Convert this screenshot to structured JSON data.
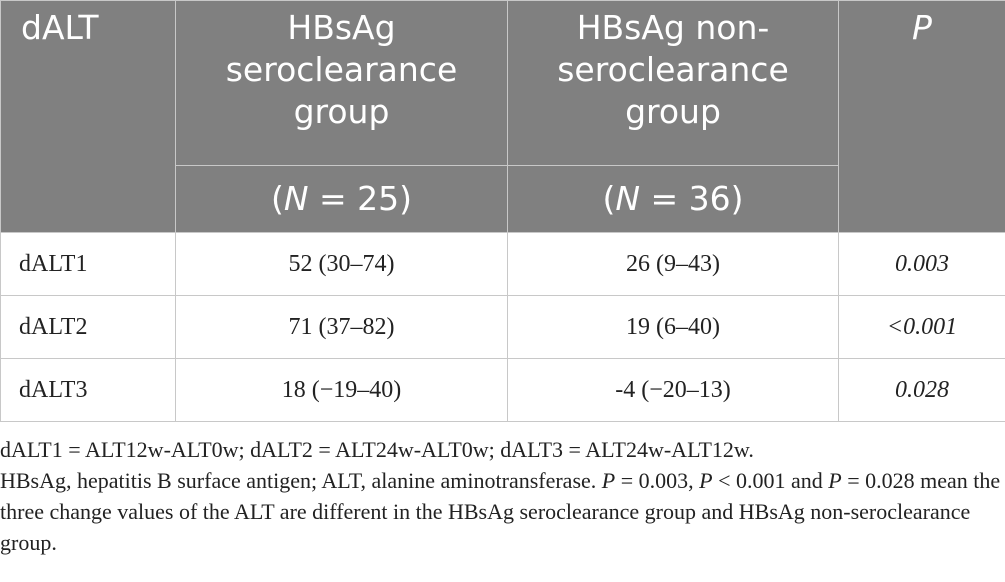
{
  "table": {
    "header": [
      "dALT",
      "HBsAg seroclearance group",
      "HBsAg non-seroclearance group",
      "P"
    ],
    "subheader": [
      [
        "(",
        "N",
        " = 25)"
      ],
      [
        "(",
        "N",
        " = 36)"
      ]
    ],
    "rows": [
      [
        "dALT1",
        "52 (30–74)",
        "26 (9–43)",
        "0.003"
      ],
      [
        "dALT2",
        "71 (37–82)",
        "19 (6–40)",
        "<0.001"
      ],
      [
        "dALT3",
        "18 (−19–40)",
        "-4 (−20–13)",
        "0.028"
      ]
    ]
  },
  "notes": [
    [
      "dALT1 = ALT12w-ALT0w; dALT2 = ALT24w-ALT0w; dALT3 = ALT24w-ALT12w."
    ],
    [
      "HBsAg, hepatitis B surface antigen; ALT, alanine aminotransferase. ",
      "P",
      " = 0.003, ",
      "P",
      " < 0.001 and ",
      "P",
      " = 0.028 mean the three change values of the ALT are different in the HBsAg seroclearance group and HBsAg non-seroclearance group."
    ]
  ]
}
